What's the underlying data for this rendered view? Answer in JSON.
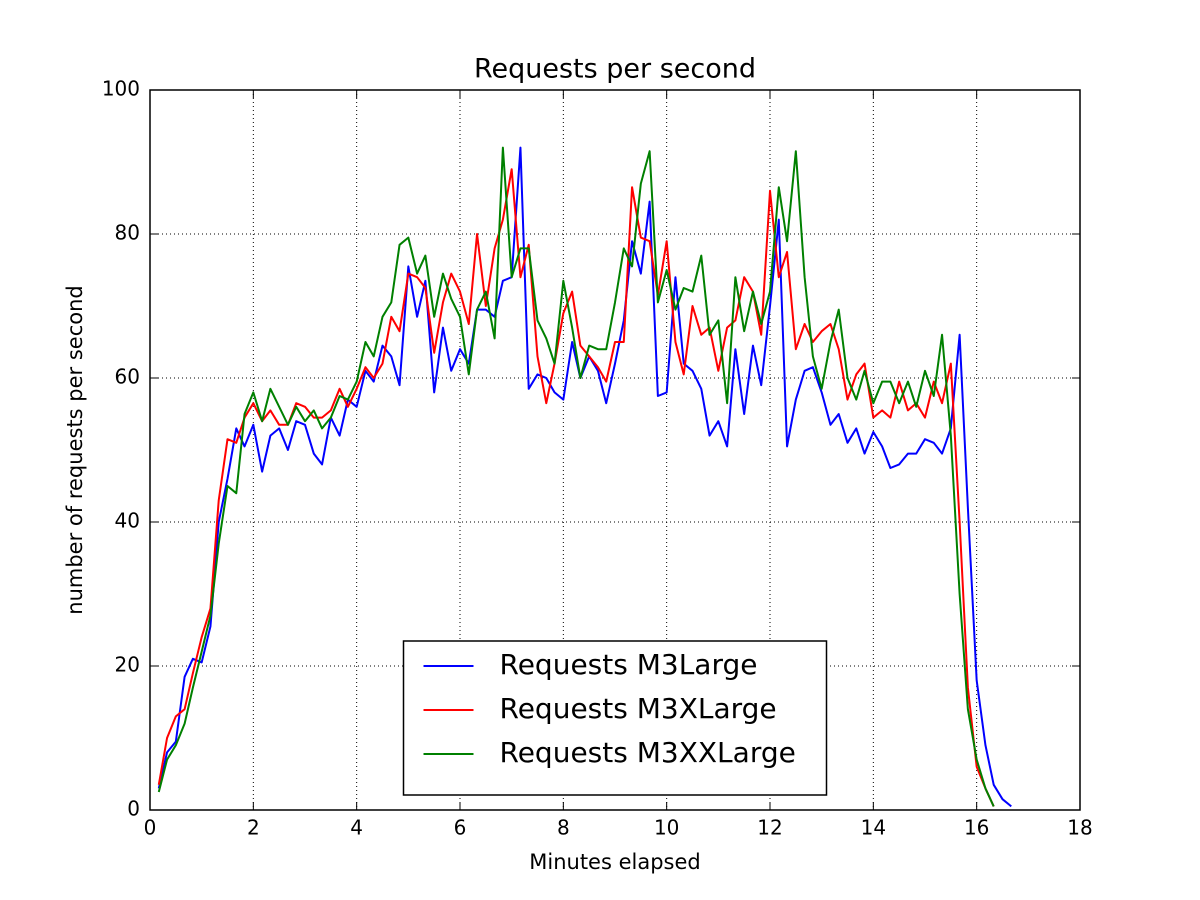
{
  "chart_data": {
    "type": "line",
    "title": "Requests per second",
    "xlabel": "Minutes elapsed",
    "ylabel": "number of requests per second",
    "x": [
      0.17,
      0.33,
      0.5,
      0.67,
      0.83,
      1,
      1.17,
      1.33,
      1.5,
      1.67,
      1.83,
      2,
      2.17,
      2.33,
      2.5,
      2.67,
      2.83,
      3,
      3.17,
      3.33,
      3.5,
      3.67,
      3.83,
      4,
      4.17,
      4.33,
      4.5,
      4.67,
      4.83,
      5,
      5.17,
      5.33,
      5.5,
      5.67,
      5.83,
      6,
      6.17,
      6.33,
      6.5,
      6.67,
      6.83,
      7,
      7.17,
      7.33,
      7.5,
      7.67,
      7.83,
      8,
      8.17,
      8.33,
      8.5,
      8.67,
      8.83,
      9,
      9.17,
      9.33,
      9.5,
      9.67,
      9.83,
      10,
      10.17,
      10.33,
      10.5,
      10.67,
      10.83,
      11,
      11.17,
      11.33,
      11.5,
      11.67,
      11.83,
      12,
      12.17,
      12.33,
      12.5,
      12.67,
      12.83,
      13,
      13.17,
      13.33,
      13.5,
      13.67,
      13.83,
      14,
      14.17,
      14.33,
      14.5,
      14.67,
      14.83,
      15,
      15.17,
      15.33,
      15.5,
      15.67,
      15.83,
      16,
      16.17,
      16.33,
      16.5,
      16.67
    ],
    "series": [
      {
        "name": "Requests M3Large",
        "color": "#0000ff",
        "values": [
          3,
          8,
          9.5,
          18.5,
          21,
          20.5,
          25.5,
          40,
          46,
          53,
          50.5,
          53.5,
          47,
          52,
          53,
          50,
          54,
          53.5,
          49.5,
          48,
          54.5,
          52,
          57,
          56,
          61,
          59.5,
          64.5,
          63,
          59,
          75.5,
          68.5,
          73.5,
          58,
          67,
          61,
          64,
          62,
          69.5,
          69.5,
          68.5,
          73.5,
          74,
          92,
          58.5,
          60.5,
          60,
          58,
          57,
          65,
          60,
          63,
          61,
          56.5,
          62,
          68,
          79,
          74.5,
          84.5,
          57.5,
          58,
          74,
          62,
          61,
          58.5,
          52,
          54,
          50.5,
          64,
          55,
          64.5,
          59,
          70,
          82,
          50.5,
          57,
          61,
          61.5,
          58,
          53.5,
          55,
          51,
          53,
          49.5,
          52.5,
          50.5,
          47.5,
          48,
          49.5,
          49.5,
          51.5,
          51,
          49.5,
          53,
          66,
          42,
          18,
          9,
          3.5,
          1.5,
          0.5
        ]
      },
      {
        "name": "Requests M3XLarge",
        "color": "#ff0000",
        "values": [
          3.5,
          10,
          13,
          14,
          19,
          24,
          28,
          43,
          51.5,
          51,
          54.5,
          56.5,
          54,
          55.5,
          53.5,
          53.5,
          56.5,
          56,
          54.5,
          54.5,
          55.5,
          58.5,
          56,
          58.5,
          61.5,
          60,
          62,
          68.5,
          66.5,
          74.5,
          74,
          72.5,
          63.5,
          70.5,
          74.5,
          72,
          67.5,
          80,
          70,
          78,
          82,
          89,
          74,
          78.5,
          63,
          56.5,
          62,
          69,
          72,
          64.5,
          63,
          61.5,
          59.5,
          65,
          65,
          86.5,
          79.5,
          79,
          71.5,
          79,
          65,
          60.5,
          70,
          66,
          67,
          61,
          67,
          68,
          74,
          72,
          66,
          86,
          74,
          77.5,
          64,
          67.5,
          65,
          66.5,
          67.5,
          64,
          57,
          60.5,
          62,
          54.5,
          55.5,
          54.5,
          59.5,
          55.5,
          56.5,
          54.5,
          59.5,
          56.5,
          62,
          40,
          17,
          6,
          3,
          0.5,
          null,
          null
        ]
      },
      {
        "name": "Requests M3XXLarge",
        "color": "#008000",
        "values": [
          2.5,
          7,
          9,
          12,
          17,
          22,
          27,
          37,
          45,
          44,
          55,
          58,
          54,
          58.5,
          56,
          53.5,
          56,
          54,
          55.5,
          53,
          54.5,
          57.5,
          57,
          59.5,
          65,
          63,
          68.5,
          70.5,
          78.5,
          79.5,
          74.5,
          77,
          68.5,
          74.5,
          71,
          68.5,
          60.5,
          69.5,
          72,
          65.5,
          92,
          74,
          78,
          78,
          68,
          65.5,
          62,
          73.5,
          67,
          60,
          64.5,
          64,
          64,
          70.5,
          78,
          75.5,
          87,
          91.5,
          70.5,
          75,
          69.5,
          72.5,
          72,
          77,
          66,
          68,
          56.5,
          74,
          66.5,
          72,
          67.5,
          72,
          86.5,
          79,
          91.5,
          74,
          63,
          58.5,
          65,
          69.5,
          60,
          57,
          61,
          56.5,
          59.5,
          59.5,
          56.5,
          59.5,
          56,
          61,
          57.5,
          66,
          52,
          30,
          14,
          7,
          3,
          0.5,
          null,
          null
        ]
      }
    ],
    "xlim": [
      0,
      18
    ],
    "xticks": [
      0,
      2,
      4,
      6,
      8,
      10,
      12,
      14,
      16,
      18
    ],
    "ylim": [
      0,
      100
    ],
    "yticks": [
      0,
      20,
      40,
      60,
      80,
      100
    ],
    "grid": true,
    "legend": "lower center"
  }
}
